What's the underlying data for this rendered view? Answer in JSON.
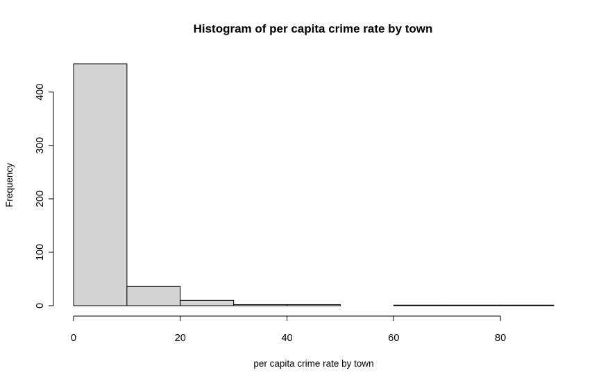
{
  "chart_data": {
    "type": "histogram",
    "title": "Histogram of per capita crime rate by town",
    "xlabel": "per capita crime rate by town",
    "ylabel": "Frequency",
    "bins": [
      {
        "start": 0,
        "end": 10,
        "count": 453
      },
      {
        "start": 10,
        "end": 20,
        "count": 36
      },
      {
        "start": 20,
        "end": 30,
        "count": 10
      },
      {
        "start": 30,
        "end": 40,
        "count": 2
      },
      {
        "start": 40,
        "end": 50,
        "count": 2
      },
      {
        "start": 50,
        "end": 60,
        "count": 0
      },
      {
        "start": 60,
        "end": 70,
        "count": 1
      },
      {
        "start": 70,
        "end": 80,
        "count": 1
      },
      {
        "start": 80,
        "end": 90,
        "count": 1
      }
    ],
    "xlim": [
      0,
      90
    ],
    "ylim": [
      0,
      453
    ],
    "x_ticks": [
      0,
      20,
      40,
      60,
      80
    ],
    "y_ticks": [
      0,
      100,
      200,
      300,
      400
    ],
    "grid": false,
    "bar_color": "#d3d3d3",
    "edge_color": "#000000"
  }
}
